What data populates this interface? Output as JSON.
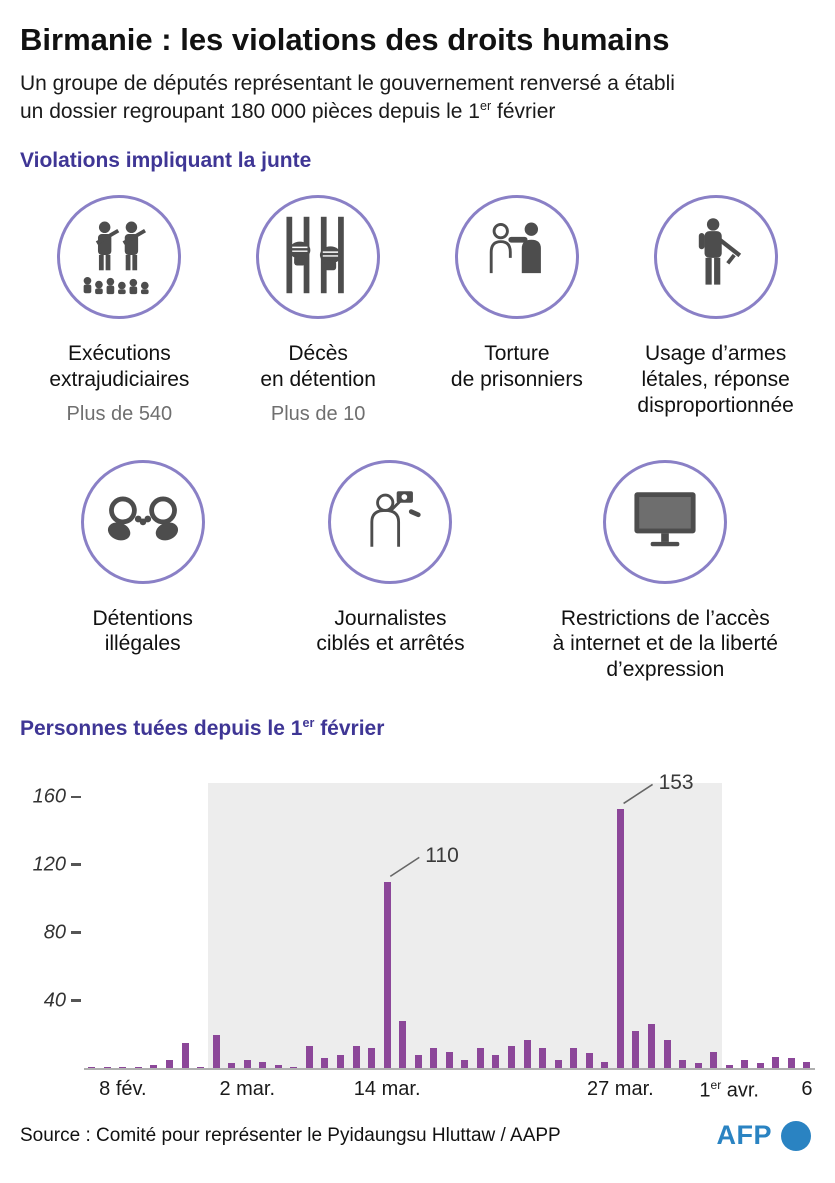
{
  "header": {
    "title": "Birmanie : les violations des droits humains",
    "subtitle": {
      "part1": "Un groupe de députés représentant le gouvernement renversé a établi\nun dossier regroupant 180 000 pièces depuis le 1",
      "sup": "er",
      "part2": " février"
    }
  },
  "violations": {
    "heading": "Violations impliquant la junte",
    "items": [
      {
        "icon": "soldiers-crowd-icon",
        "label": "Exécutions\nextrajudiciaires",
        "stat": "Plus de 540"
      },
      {
        "icon": "fists-prison-bars-icon",
        "label": "Décès\nen détention",
        "stat": "Plus de 10"
      },
      {
        "icon": "throat-grab-icon",
        "label": "Torture\nde prisonniers"
      },
      {
        "icon": "armed-soldier-icon",
        "label": "Usage d’armes\nlétales, réponse\ndisproportionnée"
      },
      {
        "icon": "handcuffs-icon",
        "label": "Détentions\nillégales"
      },
      {
        "icon": "journalist-camera-icon",
        "label": "Journalistes\nciblés et arrêtés"
      },
      {
        "icon": "computer-monitor-icon",
        "label": "Restrictions de l’accès\nà internet et de la liberté\nd’expression"
      }
    ]
  },
  "chart": {
    "heading": {
      "part1": "Personnes tuées depuis le 1",
      "sup": "er",
      "part2": " février"
    }
  },
  "chart_data": {
    "type": "bar",
    "title": "Personnes tuées depuis le 1er février",
    "xlabel": "",
    "ylabel": "",
    "ylim": [
      0,
      168
    ],
    "yticks": [
      40,
      80,
      120,
      160
    ],
    "grid": false,
    "bar_color": "#8c4799",
    "values": [
      1,
      1,
      1,
      1,
      2,
      5,
      15,
      1,
      20,
      3,
      5,
      4,
      2,
      1,
      13,
      6,
      8,
      13,
      12,
      110,
      28,
      8,
      12,
      10,
      5,
      12,
      8,
      13,
      17,
      12,
      5,
      12,
      9,
      4,
      153,
      22,
      26,
      17,
      5,
      3,
      10,
      2,
      5,
      3,
      7,
      6,
      4
    ],
    "x_ticks": [
      {
        "index": 2,
        "text": "8 fév."
      },
      {
        "index": 10,
        "text": "2 mar."
      },
      {
        "index": 19,
        "text": "14 mar."
      },
      {
        "index": 34,
        "text": "27 mar."
      },
      {
        "index": 41,
        "pre": "1",
        "sup": "er",
        "post": " avr."
      },
      {
        "index": 46,
        "text": "6"
      }
    ],
    "annotations": [
      {
        "index": 19,
        "value": 110
      },
      {
        "index": 34,
        "value": 153
      }
    ],
    "shaded_region": {
      "from_index": 8,
      "to_index": 40
    }
  },
  "footer": {
    "source": "Source :  Comité pour représenter le Pyidaungsu Hluttaw / AAPP",
    "logo": "AFP"
  },
  "colors": {
    "heading_purple": "#3f3695",
    "bar_purple": "#8c4799",
    "icon_ring": "#8a80c6",
    "afp_blue": "#2a83c2",
    "stat_gray": "#6f6f6f",
    "shade_gray": "#ededed"
  }
}
